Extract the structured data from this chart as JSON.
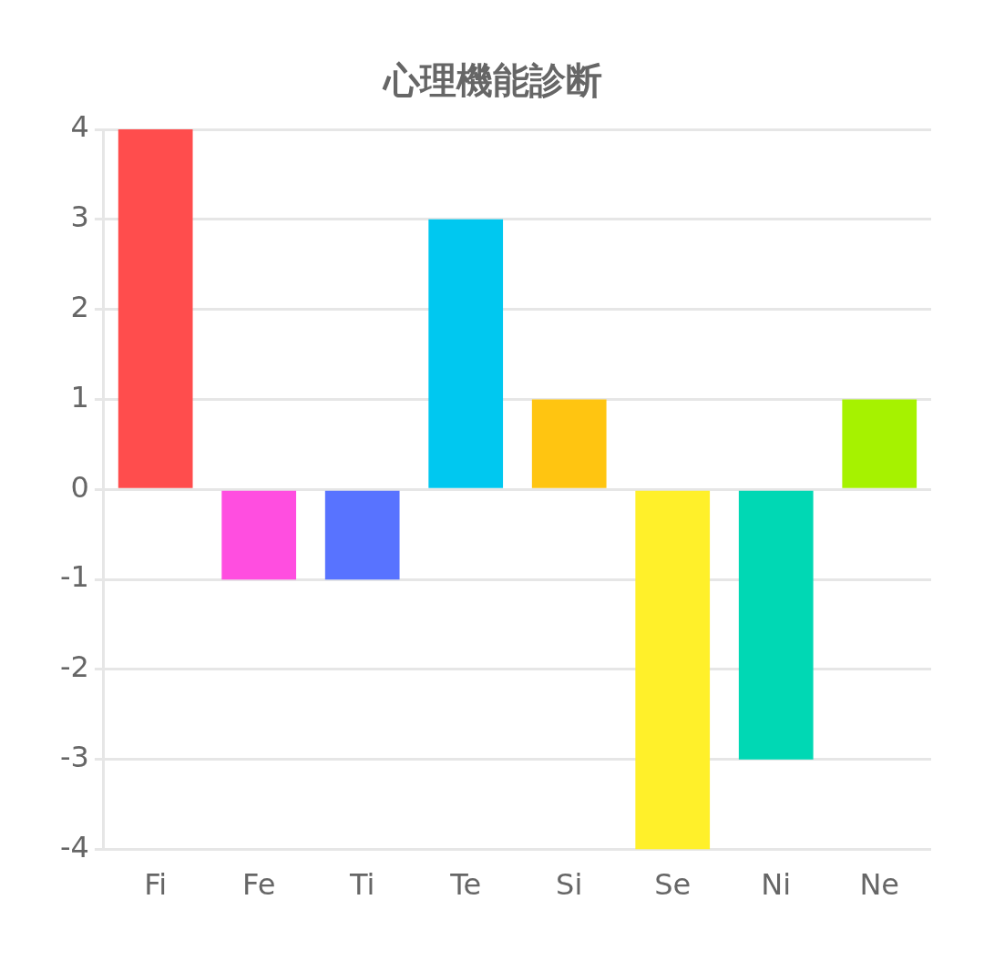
{
  "chart_data": {
    "type": "bar",
    "title": "心理機能診断",
    "categories": [
      "Fi",
      "Fe",
      "Ti",
      "Te",
      "Si",
      "Se",
      "Ni",
      "Ne"
    ],
    "values": [
      4,
      -1,
      -1,
      3,
      1,
      -4,
      -3,
      1
    ],
    "colors": [
      "#ff4d4d",
      "#ff4ee0",
      "#5873ff",
      "#00c8f0",
      "#ffc511",
      "#fff02a",
      "#00d8b4",
      "#a6f200"
    ],
    "ylim": [
      -4,
      4
    ],
    "yticks": [
      -4,
      -3,
      -2,
      -1,
      0,
      1,
      2,
      3,
      4
    ],
    "grid": "y",
    "legend": false
  }
}
